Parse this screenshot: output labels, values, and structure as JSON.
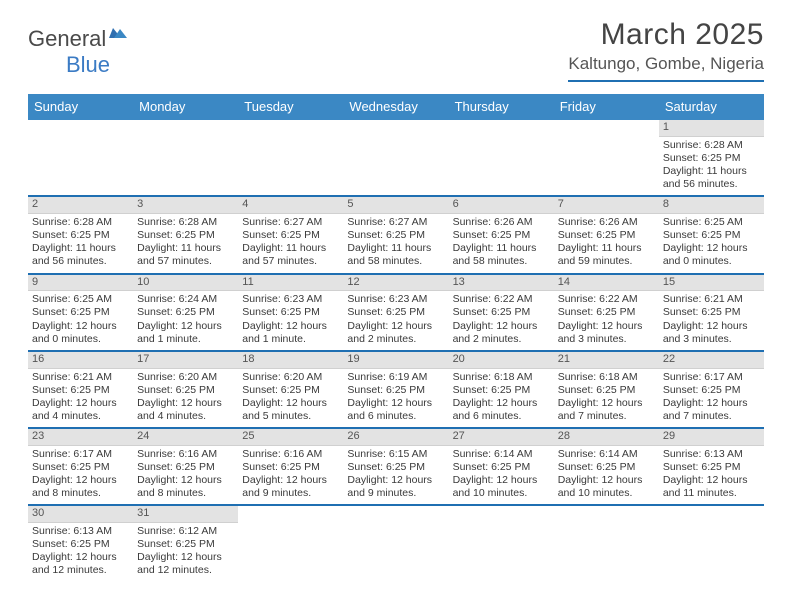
{
  "brand": {
    "name_part1": "General",
    "name_part2": "Blue"
  },
  "title": "March 2025",
  "location": "Kaltungo, Gombe, Nigeria",
  "colors": {
    "header_blue": "#3b88c4",
    "rule_blue": "#1f6fb2",
    "daynum_bg": "#e3e3e3",
    "text": "#3a3a3a",
    "logo_blue": "#3b7bc4"
  },
  "day_names": [
    "Sunday",
    "Monday",
    "Tuesday",
    "Wednesday",
    "Thursday",
    "Friday",
    "Saturday"
  ],
  "weeks": [
    [
      null,
      null,
      null,
      null,
      null,
      null,
      {
        "n": 1,
        "sunrise": "6:28 AM",
        "sunset": "6:25 PM",
        "daylight": "11 hours and 56 minutes."
      }
    ],
    [
      {
        "n": 2,
        "sunrise": "6:28 AM",
        "sunset": "6:25 PM",
        "daylight": "11 hours and 56 minutes."
      },
      {
        "n": 3,
        "sunrise": "6:28 AM",
        "sunset": "6:25 PM",
        "daylight": "11 hours and 57 minutes."
      },
      {
        "n": 4,
        "sunrise": "6:27 AM",
        "sunset": "6:25 PM",
        "daylight": "11 hours and 57 minutes."
      },
      {
        "n": 5,
        "sunrise": "6:27 AM",
        "sunset": "6:25 PM",
        "daylight": "11 hours and 58 minutes."
      },
      {
        "n": 6,
        "sunrise": "6:26 AM",
        "sunset": "6:25 PM",
        "daylight": "11 hours and 58 minutes."
      },
      {
        "n": 7,
        "sunrise": "6:26 AM",
        "sunset": "6:25 PM",
        "daylight": "11 hours and 59 minutes."
      },
      {
        "n": 8,
        "sunrise": "6:25 AM",
        "sunset": "6:25 PM",
        "daylight": "12 hours and 0 minutes."
      }
    ],
    [
      {
        "n": 9,
        "sunrise": "6:25 AM",
        "sunset": "6:25 PM",
        "daylight": "12 hours and 0 minutes."
      },
      {
        "n": 10,
        "sunrise": "6:24 AM",
        "sunset": "6:25 PM",
        "daylight": "12 hours and 1 minute."
      },
      {
        "n": 11,
        "sunrise": "6:23 AM",
        "sunset": "6:25 PM",
        "daylight": "12 hours and 1 minute."
      },
      {
        "n": 12,
        "sunrise": "6:23 AM",
        "sunset": "6:25 PM",
        "daylight": "12 hours and 2 minutes."
      },
      {
        "n": 13,
        "sunrise": "6:22 AM",
        "sunset": "6:25 PM",
        "daylight": "12 hours and 2 minutes."
      },
      {
        "n": 14,
        "sunrise": "6:22 AM",
        "sunset": "6:25 PM",
        "daylight": "12 hours and 3 minutes."
      },
      {
        "n": 15,
        "sunrise": "6:21 AM",
        "sunset": "6:25 PM",
        "daylight": "12 hours and 3 minutes."
      }
    ],
    [
      {
        "n": 16,
        "sunrise": "6:21 AM",
        "sunset": "6:25 PM",
        "daylight": "12 hours and 4 minutes."
      },
      {
        "n": 17,
        "sunrise": "6:20 AM",
        "sunset": "6:25 PM",
        "daylight": "12 hours and 4 minutes."
      },
      {
        "n": 18,
        "sunrise": "6:20 AM",
        "sunset": "6:25 PM",
        "daylight": "12 hours and 5 minutes."
      },
      {
        "n": 19,
        "sunrise": "6:19 AM",
        "sunset": "6:25 PM",
        "daylight": "12 hours and 6 minutes."
      },
      {
        "n": 20,
        "sunrise": "6:18 AM",
        "sunset": "6:25 PM",
        "daylight": "12 hours and 6 minutes."
      },
      {
        "n": 21,
        "sunrise": "6:18 AM",
        "sunset": "6:25 PM",
        "daylight": "12 hours and 7 minutes."
      },
      {
        "n": 22,
        "sunrise": "6:17 AM",
        "sunset": "6:25 PM",
        "daylight": "12 hours and 7 minutes."
      }
    ],
    [
      {
        "n": 23,
        "sunrise": "6:17 AM",
        "sunset": "6:25 PM",
        "daylight": "12 hours and 8 minutes."
      },
      {
        "n": 24,
        "sunrise": "6:16 AM",
        "sunset": "6:25 PM",
        "daylight": "12 hours and 8 minutes."
      },
      {
        "n": 25,
        "sunrise": "6:16 AM",
        "sunset": "6:25 PM",
        "daylight": "12 hours and 9 minutes."
      },
      {
        "n": 26,
        "sunrise": "6:15 AM",
        "sunset": "6:25 PM",
        "daylight": "12 hours and 9 minutes."
      },
      {
        "n": 27,
        "sunrise": "6:14 AM",
        "sunset": "6:25 PM",
        "daylight": "12 hours and 10 minutes."
      },
      {
        "n": 28,
        "sunrise": "6:14 AM",
        "sunset": "6:25 PM",
        "daylight": "12 hours and 10 minutes."
      },
      {
        "n": 29,
        "sunrise": "6:13 AM",
        "sunset": "6:25 PM",
        "daylight": "12 hours and 11 minutes."
      }
    ],
    [
      {
        "n": 30,
        "sunrise": "6:13 AM",
        "sunset": "6:25 PM",
        "daylight": "12 hours and 12 minutes."
      },
      {
        "n": 31,
        "sunrise": "6:12 AM",
        "sunset": "6:25 PM",
        "daylight": "12 hours and 12 minutes."
      },
      null,
      null,
      null,
      null,
      null
    ]
  ],
  "labels": {
    "sunrise": "Sunrise:",
    "sunset": "Sunset:",
    "daylight": "Daylight:"
  }
}
